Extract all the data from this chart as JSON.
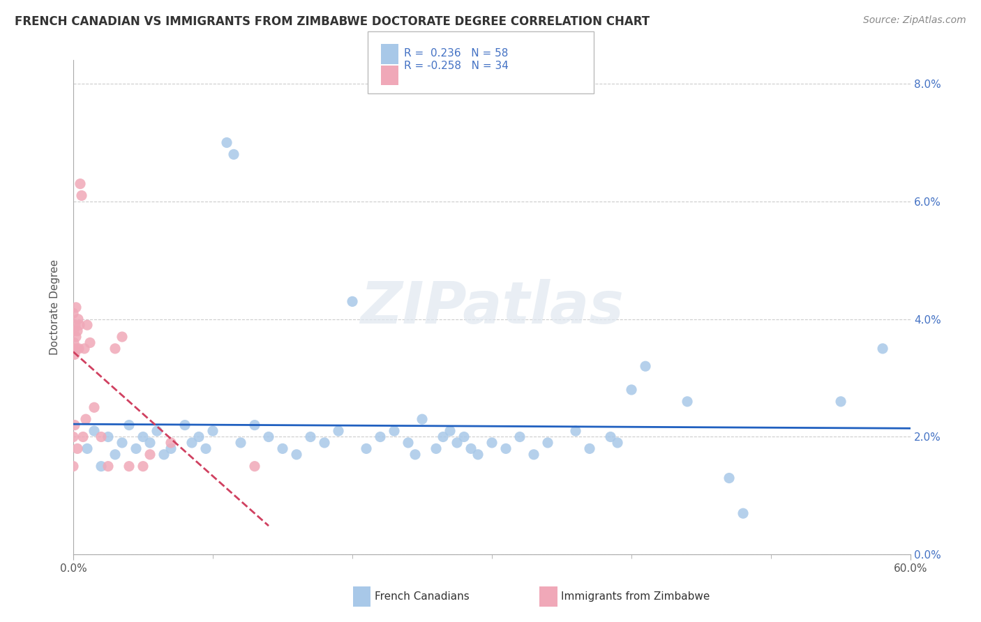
{
  "title": "FRENCH CANADIAN VS IMMIGRANTS FROM ZIMBABWE DOCTORATE DEGREE CORRELATION CHART",
  "source": "Source: ZipAtlas.com",
  "xlabel_french": "French Canadians",
  "xlabel_zimbabwe": "Immigrants from Zimbabwe",
  "ylabel": "Doctorate Degree",
  "r_french": 0.236,
  "n_french": 58,
  "r_zimbabwe": -0.258,
  "n_zimbabwe": 34,
  "blue_color": "#a8c8e8",
  "pink_color": "#f0a8b8",
  "blue_line_color": "#2060c0",
  "pink_line_color": "#d04060",
  "watermark": "ZIPatlas",
  "french_x": [
    1.0,
    1.5,
    2.0,
    2.5,
    3.0,
    3.5,
    4.0,
    4.5,
    5.0,
    5.5,
    6.0,
    6.5,
    7.0,
    8.0,
    8.5,
    9.0,
    9.5,
    10.0,
    11.0,
    11.5,
    12.0,
    13.0,
    14.0,
    15.0,
    16.0,
    17.0,
    18.0,
    19.0,
    20.0,
    21.0,
    22.0,
    23.0,
    24.0,
    24.5,
    25.0,
    26.0,
    26.5,
    27.0,
    27.5,
    28.0,
    28.5,
    29.0,
    30.0,
    31.0,
    32.0,
    33.0,
    34.0,
    36.0,
    37.0,
    38.5,
    39.0,
    40.0,
    41.0,
    44.0,
    47.0,
    48.0,
    55.0,
    58.0
  ],
  "french_y": [
    1.8,
    2.1,
    1.5,
    2.0,
    1.7,
    1.9,
    2.2,
    1.8,
    2.0,
    1.9,
    2.1,
    1.7,
    1.8,
    2.2,
    1.9,
    2.0,
    1.8,
    2.1,
    7.0,
    6.8,
    1.9,
    2.2,
    2.0,
    1.8,
    1.7,
    2.0,
    1.9,
    2.1,
    4.3,
    1.8,
    2.0,
    2.1,
    1.9,
    1.7,
    2.3,
    1.8,
    2.0,
    2.1,
    1.9,
    2.0,
    1.8,
    1.7,
    1.9,
    1.8,
    2.0,
    1.7,
    1.9,
    2.1,
    1.8,
    2.0,
    1.9,
    2.8,
    3.2,
    2.6,
    1.3,
    0.7,
    2.6,
    3.5
  ],
  "zimbabwe_x": [
    0.0,
    0.0,
    0.0,
    0.0,
    0.05,
    0.05,
    0.1,
    0.1,
    0.15,
    0.2,
    0.2,
    0.25,
    0.3,
    0.3,
    0.35,
    0.4,
    0.45,
    0.5,
    0.6,
    0.7,
    0.8,
    0.9,
    1.0,
    1.2,
    1.5,
    2.0,
    2.5,
    3.0,
    3.5,
    4.0,
    5.0,
    5.5,
    7.0,
    13.0
  ],
  "zimbabwe_y": [
    1.5,
    2.0,
    3.5,
    4.1,
    3.8,
    3.6,
    2.2,
    3.4,
    3.9,
    3.7,
    4.2,
    3.5,
    3.8,
    1.8,
    4.0,
    3.5,
    3.9,
    6.3,
    6.1,
    2.0,
    3.5,
    2.3,
    3.9,
    3.6,
    2.5,
    2.0,
    1.5,
    3.5,
    3.7,
    1.5,
    1.5,
    1.7,
    1.9,
    1.5
  ],
  "xlim": [
    0,
    60
  ],
  "ylim": [
    0,
    8.4
  ],
  "xticks": [
    0,
    60
  ],
  "yticks": [
    0,
    2,
    4,
    6,
    8
  ]
}
